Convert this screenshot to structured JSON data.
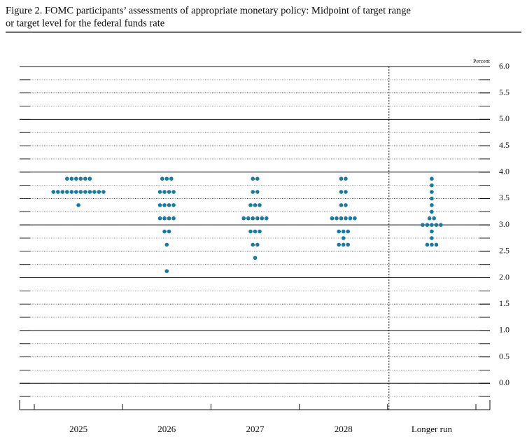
{
  "chart_data": {
    "type": "dot",
    "title_lines": [
      "Figure 2. FOMC participants’ assessments of appropriate monetary policy: Midpoint of target range",
      "or target level for the federal funds rate"
    ],
    "y_unit": "Percent",
    "categories": [
      "2025",
      "2026",
      "2027",
      "2028",
      "Longer run"
    ],
    "dots": [
      [
        {
          "rate": 3.875,
          "count": 6
        },
        {
          "rate": 3.625,
          "count": 12
        },
        {
          "rate": 3.375,
          "count": 1
        }
      ],
      [
        {
          "rate": 3.875,
          "count": 3
        },
        {
          "rate": 3.625,
          "count": 4
        },
        {
          "rate": 3.375,
          "count": 4
        },
        {
          "rate": 3.125,
          "count": 4
        },
        {
          "rate": 2.875,
          "count": 2
        },
        {
          "rate": 2.625,
          "count": 1
        },
        {
          "rate": 2.125,
          "count": 1
        }
      ],
      [
        {
          "rate": 3.875,
          "count": 2
        },
        {
          "rate": 3.625,
          "count": 2
        },
        {
          "rate": 3.375,
          "count": 3
        },
        {
          "rate": 3.125,
          "count": 6
        },
        {
          "rate": 2.875,
          "count": 3
        },
        {
          "rate": 2.625,
          "count": 2
        },
        {
          "rate": 2.375,
          "count": 1
        }
      ],
      [
        {
          "rate": 3.875,
          "count": 2
        },
        {
          "rate": 3.625,
          "count": 2
        },
        {
          "rate": 3.375,
          "count": 2
        },
        {
          "rate": 3.125,
          "count": 6
        },
        {
          "rate": 2.875,
          "count": 3
        },
        {
          "rate": 2.75,
          "count": 1
        },
        {
          "rate": 2.625,
          "count": 3
        }
      ],
      [
        {
          "rate": 3.875,
          "count": 1
        },
        {
          "rate": 3.75,
          "count": 1
        },
        {
          "rate": 3.625,
          "count": 1
        },
        {
          "rate": 3.5,
          "count": 1
        },
        {
          "rate": 3.375,
          "count": 1
        },
        {
          "rate": 3.25,
          "count": 1
        },
        {
          "rate": 3.125,
          "count": 2
        },
        {
          "rate": 3.0,
          "count": 5
        },
        {
          "rate": 2.875,
          "count": 1
        },
        {
          "rate": 2.75,
          "count": 1
        },
        {
          "rate": 2.625,
          "count": 3
        }
      ]
    ],
    "color": "#167ba3",
    "ylim": [
      -0.5,
      6.0
    ],
    "yticks": [
      {
        "value": 0,
        "label": "0.0"
      },
      {
        "value": 0.5,
        "label": "0.5"
      },
      {
        "value": 1,
        "label": "1.0"
      },
      {
        "value": 1.5,
        "label": "1.5"
      },
      {
        "value": 2,
        "label": "2.0"
      },
      {
        "value": 2.5,
        "label": "2.5"
      },
      {
        "value": 3,
        "label": "3.0"
      },
      {
        "value": 3.5,
        "label": "3.5"
      },
      {
        "value": 4,
        "label": "4.0"
      },
      {
        "value": 4.5,
        "label": "4.5"
      },
      {
        "value": 5,
        "label": "5.0"
      },
      {
        "value": 5.5,
        "label": "5.5"
      },
      {
        "value": 6,
        "label": "6.0"
      }
    ],
    "grid": true
  }
}
